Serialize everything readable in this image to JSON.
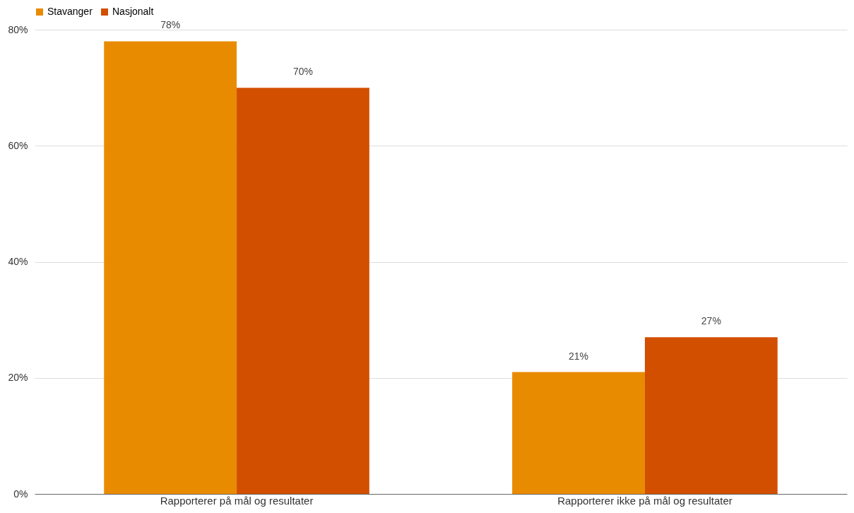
{
  "chart_data": {
    "type": "bar",
    "categories": [
      "Rapporterer på mål og resultater",
      "Rapporterer ikke på mål og resultater"
    ],
    "series": [
      {
        "name": "Stavanger",
        "color": "#e98b00",
        "values": [
          78,
          21
        ],
        "value_labels": [
          "78%",
          "21%"
        ]
      },
      {
        "name": "Nasjonalt",
        "color": "#d24f00",
        "values": [
          70,
          27
        ],
        "value_labels": [
          "70%",
          "27%"
        ]
      }
    ],
    "ylim": [
      0,
      80
    ],
    "yticks": [
      {
        "value": 0,
        "label": "0%"
      },
      {
        "value": 20,
        "label": "20%"
      },
      {
        "value": 40,
        "label": "40%"
      },
      {
        "value": 60,
        "label": "60%"
      },
      {
        "value": 80,
        "label": "80%"
      }
    ],
    "grid": "y",
    "legend": "top"
  }
}
